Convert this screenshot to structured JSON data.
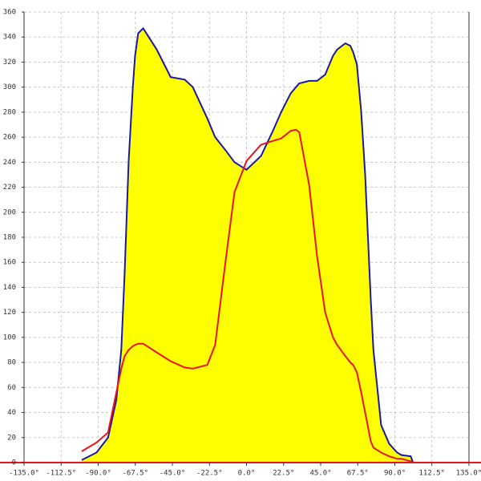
{
  "chart_data": {
    "type": "area",
    "x": [
      -100,
      -91,
      -84,
      -79,
      -76,
      -74,
      -71.5,
      -69,
      -67.6,
      -65.7,
      -62.7,
      -54.5,
      -46,
      -37.5,
      -32.6,
      -23.8,
      -19,
      -13,
      -7.3,
      0,
      8.8,
      16,
      21,
      26.8,
      30,
      32,
      38,
      42.8,
      47.7,
      52.5,
      55,
      60,
      63,
      64.7,
      67,
      69.6,
      72,
      75.4,
      77,
      81.7,
      86.6,
      91.4,
      94,
      99.7,
      101
    ],
    "series": [
      {
        "color": "#1a1aa0",
        "fill": "#ffff00",
        "values": [
          2,
          8,
          20,
          50,
          90,
          150,
          241,
          300,
          325,
          343,
          347,
          330,
          308,
          306,
          300,
          275,
          260,
          250,
          240,
          234,
          245,
          265,
          280,
          295,
          300,
          303,
          305,
          305,
          310,
          325,
          330,
          335,
          333,
          328,
          318,
          280,
          230,
          130,
          90,
          30,
          15,
          8,
          6,
          5,
          0
        ]
      },
      {
        "color": "#e8141e",
        "values": [
          9,
          16,
          24,
          56,
          75,
          85,
          90,
          93,
          94,
          95,
          95,
          88,
          81,
          76,
          75,
          78,
          94,
          158,
          216,
          241,
          254,
          257,
          259,
          265,
          266,
          264,
          222,
          165,
          120,
          100,
          94,
          85,
          80,
          78,
          72,
          56,
          40,
          17,
          12,
          8,
          5,
          3,
          3,
          1,
          0
        ]
      }
    ],
    "xlim": [
      -135,
      135
    ],
    "xticks": [
      {
        "value": -135,
        "label": "-135.0°"
      },
      {
        "value": -112.5,
        "label": "-112.5°"
      },
      {
        "value": -90,
        "label": "-90.0°"
      },
      {
        "value": -67.5,
        "label": "-67.5°"
      },
      {
        "value": -45,
        "label": "-45.0°"
      },
      {
        "value": -22.5,
        "label": "-22.5°"
      },
      {
        "value": 0,
        "label": "0.0°"
      },
      {
        "value": 22.5,
        "label": "22.5°"
      },
      {
        "value": 45,
        "label": "45.0°"
      },
      {
        "value": 67.5,
        "label": "67.5°"
      },
      {
        "value": 90,
        "label": "90.0°"
      },
      {
        "value": 112.5,
        "label": "112.5°"
      },
      {
        "value": 135,
        "label": "135.0°"
      }
    ],
    "ylim": [
      0,
      360
    ],
    "yticks": [
      0,
      20,
      40,
      60,
      80,
      100,
      120,
      140,
      160,
      180,
      200,
      220,
      240,
      260,
      280,
      300,
      320,
      340,
      360
    ],
    "grid": true
  }
}
